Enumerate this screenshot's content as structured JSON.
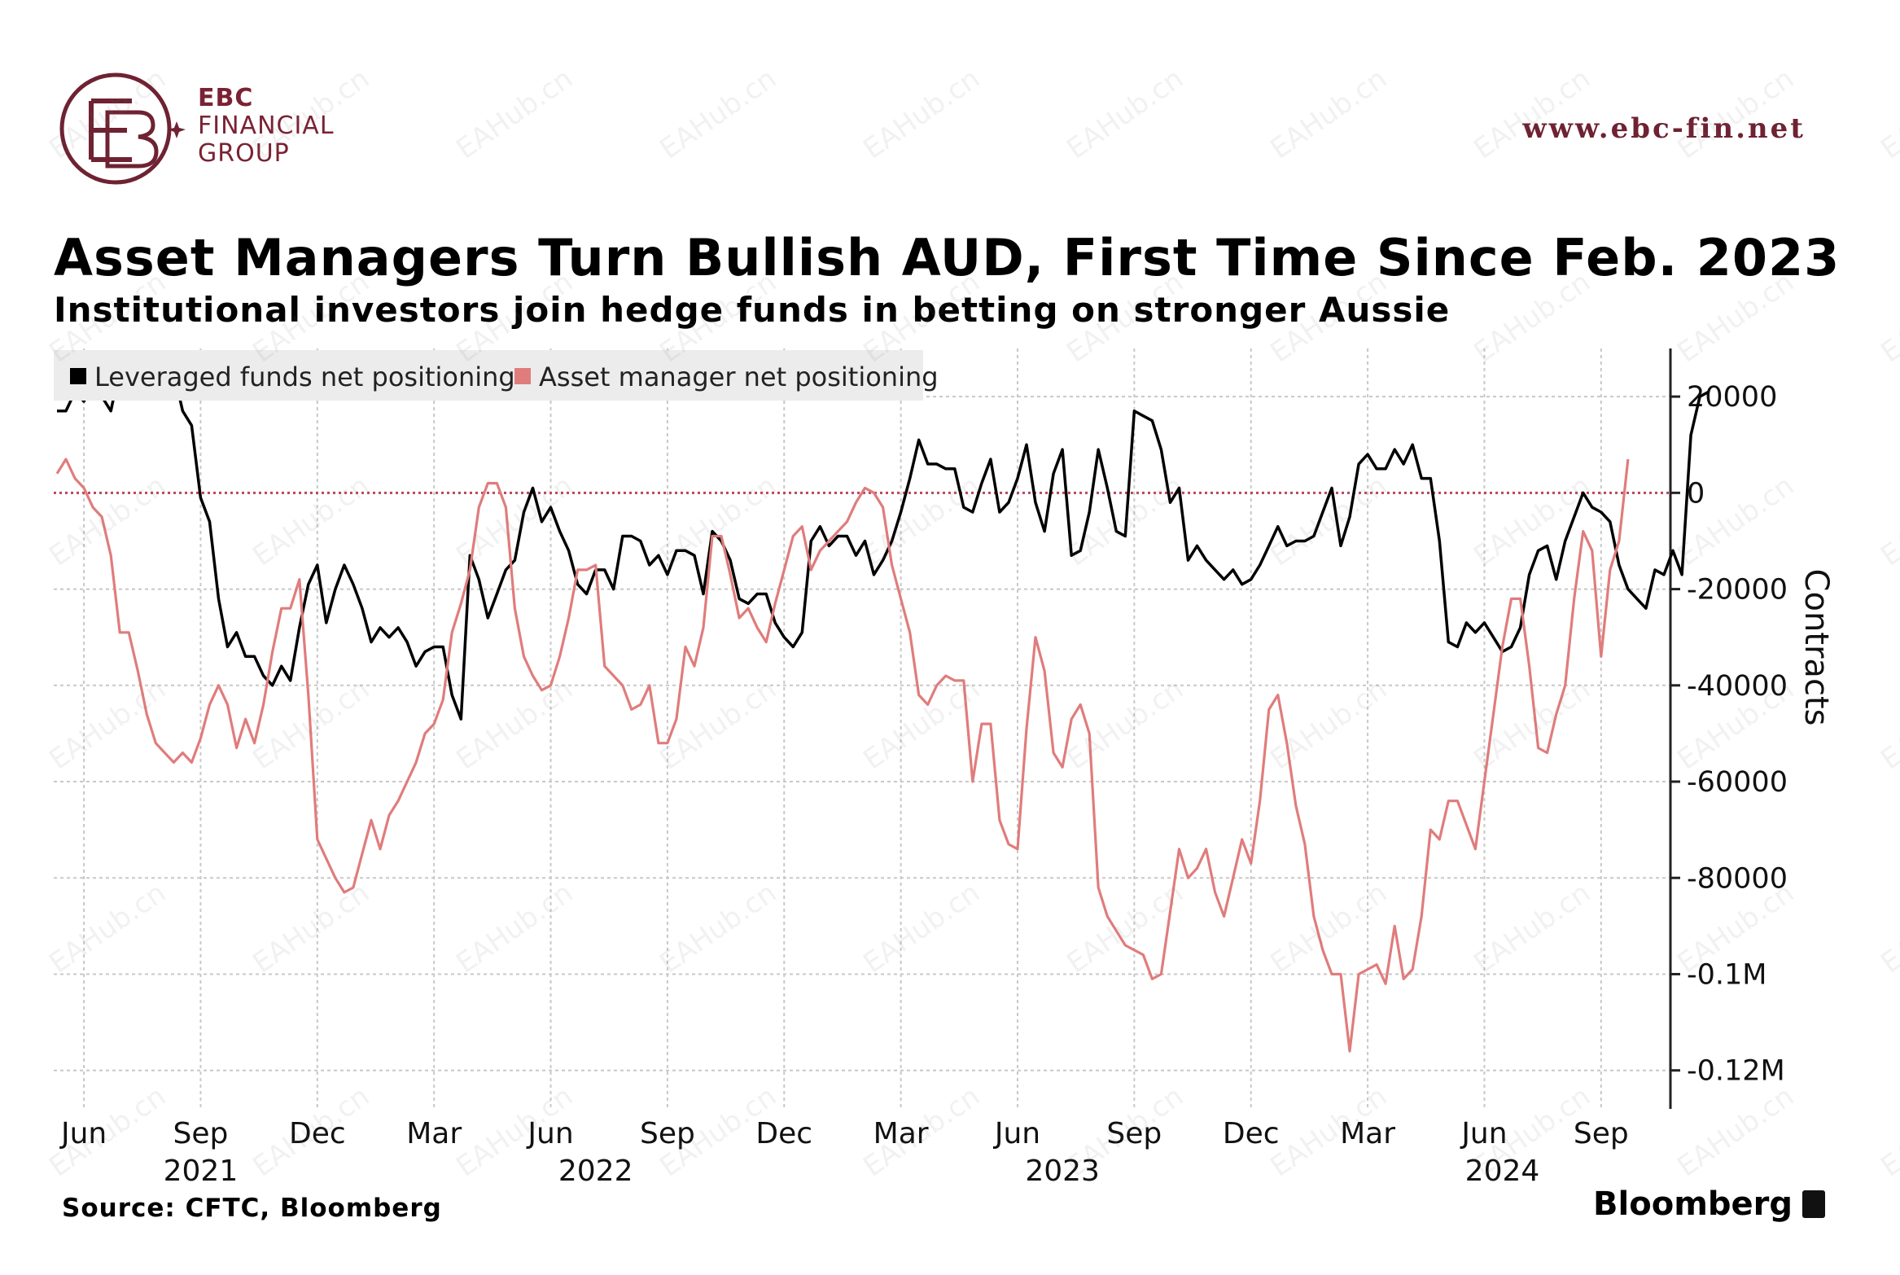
{
  "brand": {
    "line1": "EBC",
    "line2": "FINANCIAL",
    "line3": "GROUP",
    "website": "www.ebc-fin.net",
    "watermark": "EAHub.cn",
    "color": "#7a2233"
  },
  "title": "Asset Managers Turn Bullish AUD, First Time Since Feb. 2023",
  "subtitle": "Institutional investors join hedge funds in betting on stronger Aussie",
  "source": "Source: CFTC, Bloomberg",
  "publisher": "Bloomberg",
  "chart_data": {
    "type": "line",
    "legend": [
      {
        "name": "Leveraged funds net positioning",
        "color": "#000000"
      },
      {
        "name": "Asset manager net positioning",
        "color": "#e07c7c"
      }
    ],
    "legend_position": "top-left",
    "ylabel": "Contracts",
    "y_axis_side": "right",
    "ylim": [
      -128000,
      30000
    ],
    "y_ticks": [
      {
        "value": 20000,
        "label": "20000"
      },
      {
        "value": 0,
        "label": "0"
      },
      {
        "value": -20000,
        "label": "-20000"
      },
      {
        "value": -40000,
        "label": "-40000"
      },
      {
        "value": -60000,
        "label": "-60000"
      },
      {
        "value": -80000,
        "label": "-80000"
      },
      {
        "value": -100000,
        "label": "-0.1M"
      },
      {
        "value": -120000,
        "label": "-0.12M"
      }
    ],
    "x_ticks": [
      {
        "index": 3,
        "label": "Jun"
      },
      {
        "index": 16,
        "label": "Sep"
      },
      {
        "index": 29,
        "label": "Dec"
      },
      {
        "index": 42,
        "label": "Mar"
      },
      {
        "index": 55,
        "label": "Jun"
      },
      {
        "index": 68,
        "label": "Sep"
      },
      {
        "index": 81,
        "label": "Dec"
      },
      {
        "index": 94,
        "label": "Mar"
      },
      {
        "index": 107,
        "label": "Jun"
      },
      {
        "index": 120,
        "label": "Sep"
      },
      {
        "index": 133,
        "label": "Dec"
      },
      {
        "index": 146,
        "label": "Mar"
      },
      {
        "index": 159,
        "label": "Jun"
      },
      {
        "index": 172,
        "label": "Sep"
      }
    ],
    "year_labels": [
      {
        "index": 16,
        "label": "2021"
      },
      {
        "index": 60,
        "label": "2022"
      },
      {
        "index": 112,
        "label": "2023"
      },
      {
        "index": 161,
        "label": "2024"
      }
    ],
    "x_count": 180,
    "grid": true,
    "zero_line": {
      "value": 0,
      "color": "#b8455e"
    },
    "series": [
      {
        "name": "Leveraged funds net positioning",
        "color": "#000000",
        "values": [
          17000,
          17000,
          21000,
          19000,
          23000,
          20000,
          17000,
          26000,
          24000,
          24000,
          26000,
          24000,
          25000,
          25000,
          17000,
          14000,
          -1000,
          -6000,
          -22000,
          -32000,
          -29000,
          -34000,
          -34000,
          -38000,
          -40000,
          -36000,
          -39000,
          -28000,
          -19000,
          -15000,
          -27000,
          -20000,
          -15000,
          -19000,
          -24000,
          -31000,
          -28000,
          -30000,
          -28000,
          -31000,
          -36000,
          -33000,
          -32000,
          -32000,
          -42000,
          -47000,
          -13000,
          -18000,
          -26000,
          -21000,
          -16000,
          -14000,
          -4000,
          1000,
          -6000,
          -3000,
          -8000,
          -12000,
          -19000,
          -21000,
          -16000,
          -16000,
          -20000,
          -9000,
          -9000,
          -10000,
          -15000,
          -13000,
          -17000,
          -12000,
          -12000,
          -13000,
          -21000,
          -8000,
          -10000,
          -14000,
          -22000,
          -23000,
          -21000,
          -21000,
          -27000,
          -30000,
          -32000,
          -29000,
          -10000,
          -7000,
          -11000,
          -9000,
          -9000,
          -13000,
          -10000,
          -17000,
          -14000,
          -10000,
          -4000,
          3000,
          11000,
          6000,
          6000,
          5000,
          5000,
          -3000,
          -4000,
          2000,
          7000,
          -4000,
          -2000,
          3000,
          10000,
          -2000,
          -8000,
          4000,
          9000,
          -13000,
          -12000,
          -4000,
          9000,
          1000,
          -8000,
          -9000,
          17000,
          16000,
          15000,
          9000,
          -2000,
          1000,
          -14000,
          -11000,
          -14000,
          -16000,
          -18000,
          -16000,
          -19000,
          -18000,
          -15000,
          -11000,
          -7000,
          -11000,
          -10000,
          -10000,
          -9000,
          -4000,
          1000,
          -11000,
          -5000,
          6000,
          8000,
          5000,
          5000,
          9000,
          6000,
          10000,
          3000,
          3000,
          -10000,
          -31000,
          -32000,
          -27000,
          -29000,
          -27000,
          -30000,
          -33000,
          -32000,
          -28000,
          -17000,
          -12000,
          -11000,
          -18000,
          -10000,
          -5000,
          0,
          -3000,
          -4000,
          -6000,
          -15000,
          -20000,
          -22000,
          -24000,
          -16000,
          -17000,
          -12000,
          -17000,
          12000,
          20000,
          21000
        ]
      },
      {
        "name": "Asset manager net positioning",
        "color": "#e07c7c",
        "values": [
          4000,
          7000,
          3000,
          1000,
          -3000,
          -5000,
          -13000,
          -29000,
          -29000,
          -37000,
          -46000,
          -52000,
          -54000,
          -56000,
          -54000,
          -56000,
          -51000,
          -44000,
          -40000,
          -44000,
          -53000,
          -47000,
          -52000,
          -44000,
          -33000,
          -24000,
          -24000,
          -18000,
          -42000,
          -72000,
          -76000,
          -80000,
          -83000,
          -82000,
          -75000,
          -68000,
          -74000,
          -67000,
          -64000,
          -60000,
          -56000,
          -50000,
          -48000,
          -43000,
          -29000,
          -23000,
          -16000,
          -3000,
          2000,
          2000,
          -3000,
          -24000,
          -34000,
          -38000,
          -41000,
          -40000,
          -34000,
          -26000,
          -16000,
          -16000,
          -15000,
          -36000,
          -38000,
          -40000,
          -45000,
          -44000,
          -40000,
          -52000,
          -52000,
          -47000,
          -32000,
          -36000,
          -28000,
          -9000,
          -9000,
          -17000,
          -26000,
          -24000,
          -28000,
          -31000,
          -23000,
          -16000,
          -9000,
          -7000,
          -16000,
          -12000,
          -10000,
          -8000,
          -6000,
          -2000,
          1000,
          0,
          -3000,
          -15000,
          -22000,
          -29000,
          -42000,
          -44000,
          -40000,
          -38000,
          -39000,
          -39000,
          -60000,
          -48000,
          -48000,
          -68000,
          -73000,
          -74000,
          -49000,
          -30000,
          -37000,
          -54000,
          -57000,
          -47000,
          -44000,
          -50000,
          -82000,
          -88000,
          -91000,
          -94000,
          -95000,
          -96000,
          -101000,
          -100000,
          -87000,
          -74000,
          -80000,
          -78000,
          -74000,
          -83000,
          -88000,
          -80000,
          -72000,
          -77000,
          -64000,
          -45000,
          -42000,
          -52000,
          -65000,
          -73000,
          -88000,
          -95000,
          -100000,
          -100000,
          -116000,
          -100000,
          -99000,
          -98000,
          -102000,
          -90000,
          -101000,
          -99000,
          -88000,
          -70000,
          -72000,
          -64000,
          -64000,
          -69000,
          -74000,
          -60000,
          -46000,
          -32000,
          -22000,
          -22000,
          -36000,
          -53000,
          -54000,
          -46000,
          -40000,
          -22000,
          -8000,
          -12000,
          -34000,
          -16000,
          -10000,
          7000
        ]
      }
    ]
  }
}
